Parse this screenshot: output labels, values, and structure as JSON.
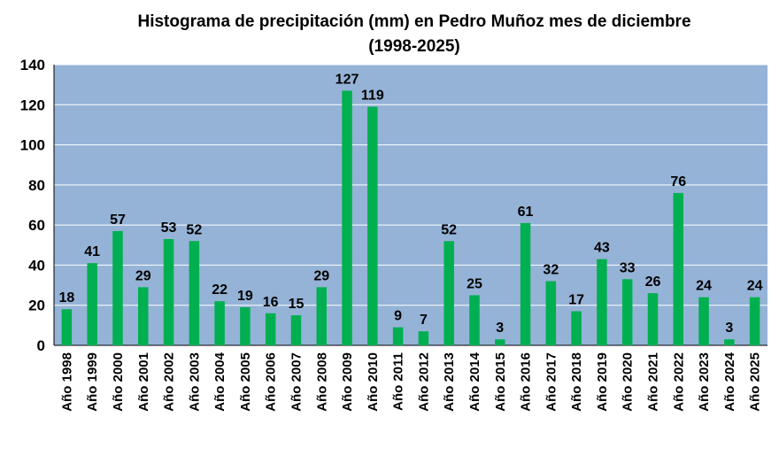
{
  "chart_data": {
    "type": "bar",
    "title": "Histograma de precipitación (mm) en Pedro Muñoz mes de diciembre",
    "subtitle": "(1998-2025)",
    "xlabel": "",
    "ylabel": "",
    "ylim": [
      0,
      140
    ],
    "yticks": [
      "0",
      "20",
      "40",
      "60",
      "80",
      "100",
      "120",
      "140"
    ],
    "grid": true,
    "legend": "none",
    "categories": [
      "Año 1998",
      "Año 1999",
      "Año 2000",
      "Año 2001",
      "Año 2002",
      "Año 2003",
      "Año 2004",
      "Año 2005",
      "Año 2006",
      "Año 2007",
      "Año 2008",
      "Año 2009",
      "Año 2010",
      "Año 2011",
      "Año 2012",
      "Año 2013",
      "Año 2014",
      "Año 2015",
      "Año 2016",
      "Año 2017",
      "Año 2018",
      "Año 2019",
      "Año 2020",
      "Año 2021",
      "Año 2022",
      "Año 2023",
      "Año 2024",
      "Año 2025"
    ],
    "values": [
      18,
      41,
      57,
      29,
      53,
      52,
      22,
      19,
      16,
      15,
      29,
      127,
      119,
      9,
      7,
      52,
      25,
      3,
      61,
      32,
      17,
      43,
      33,
      26,
      76,
      24,
      3,
      24
    ],
    "data_labels": [
      "18",
      "41",
      "57",
      "29",
      "53",
      "52",
      "22",
      "19",
      "16",
      "15",
      "29",
      "127",
      "119",
      "9",
      "7",
      "52",
      "25",
      "3",
      "61",
      "32",
      "17",
      "43",
      "33",
      "26",
      "76",
      "24",
      "3",
      "24"
    ],
    "colors": {
      "bar": "#00b050",
      "plot_background": "#95b3d7",
      "gridline": "#ffffff"
    }
  }
}
